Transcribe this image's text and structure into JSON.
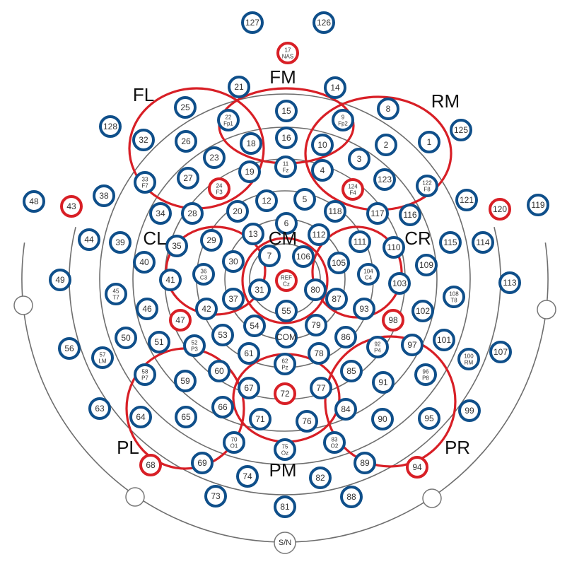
{
  "colors": {
    "electrode_ring": "#0f4f8a",
    "reference_ring": "#d81f26",
    "roi_outline": "#d81f26",
    "head_outline": "#6e6e6e"
  },
  "regions": [
    "FL",
    "FM",
    "RM",
    "CL",
    "CM",
    "CR",
    "PL",
    "PM",
    "PR"
  ],
  "reference_label": "S/N",
  "electrodes": [
    {
      "l1": "127",
      "c": "blue"
    },
    {
      "l1": "126",
      "c": "blue"
    },
    {
      "l1": "17",
      "l2": "NAS",
      "c": "red"
    },
    {
      "l1": "21",
      "c": "blue"
    },
    {
      "l1": "14",
      "c": "blue"
    },
    {
      "l1": "25",
      "c": "blue"
    },
    {
      "l1": "22",
      "l2": "Fp1",
      "c": "blue"
    },
    {
      "l1": "15",
      "c": "blue"
    },
    {
      "l1": "9",
      "l2": "Fp2",
      "c": "blue"
    },
    {
      "l1": "8",
      "c": "blue"
    },
    {
      "l1": "128",
      "c": "blue"
    },
    {
      "l1": "32",
      "c": "blue"
    },
    {
      "l1": "26",
      "c": "blue"
    },
    {
      "l1": "18",
      "c": "blue"
    },
    {
      "l1": "16",
      "c": "blue"
    },
    {
      "l1": "10",
      "c": "blue"
    },
    {
      "l1": "2",
      "c": "blue"
    },
    {
      "l1": "1",
      "c": "blue"
    },
    {
      "l1": "125",
      "c": "blue"
    },
    {
      "l1": "23",
      "c": "blue"
    },
    {
      "l1": "3",
      "c": "blue"
    },
    {
      "l1": "33",
      "l2": "F7",
      "c": "blue"
    },
    {
      "l1": "27",
      "c": "blue"
    },
    {
      "l1": "19",
      "c": "blue"
    },
    {
      "l1": "11",
      "l2": "Fz",
      "c": "blue"
    },
    {
      "l1": "4",
      "c": "blue"
    },
    {
      "l1": "123",
      "c": "blue"
    },
    {
      "l1": "122",
      "l2": "F8",
      "c": "blue"
    },
    {
      "l1": "24",
      "l2": "F3",
      "c": "red"
    },
    {
      "l1": "124",
      "l2": "F4",
      "c": "red"
    },
    {
      "l1": "48",
      "c": "blue"
    },
    {
      "l1": "43",
      "c": "red"
    },
    {
      "l1": "38",
      "c": "blue"
    },
    {
      "l1": "12",
      "c": "blue"
    },
    {
      "l1": "5",
      "c": "blue"
    },
    {
      "l1": "121",
      "c": "blue"
    },
    {
      "l1": "120",
      "c": "red"
    },
    {
      "l1": "119",
      "c": "blue"
    },
    {
      "l1": "34",
      "c": "blue"
    },
    {
      "l1": "28",
      "c": "blue"
    },
    {
      "l1": "20",
      "c": "blue"
    },
    {
      "l1": "118",
      "c": "blue"
    },
    {
      "l1": "117",
      "c": "blue"
    },
    {
      "l1": "116",
      "c": "blue"
    },
    {
      "l1": "6",
      "c": "blue"
    },
    {
      "l1": "44",
      "c": "blue"
    },
    {
      "l1": "39",
      "c": "blue"
    },
    {
      "l1": "35",
      "c": "blue"
    },
    {
      "l1": "29",
      "c": "blue"
    },
    {
      "l1": "13",
      "c": "blue"
    },
    {
      "l1": "112",
      "c": "blue"
    },
    {
      "l1": "111",
      "c": "blue"
    },
    {
      "l1": "110",
      "c": "blue"
    },
    {
      "l1": "115",
      "c": "blue"
    },
    {
      "l1": "114",
      "c": "blue"
    },
    {
      "l1": "7",
      "c": "blue"
    },
    {
      "l1": "106",
      "c": "blue"
    },
    {
      "l1": "40",
      "c": "blue"
    },
    {
      "l1": "36",
      "l2": "C3",
      "c": "blue"
    },
    {
      "l1": "30",
      "c": "blue"
    },
    {
      "l1": "105",
      "c": "blue"
    },
    {
      "l1": "104",
      "l2": "C4",
      "c": "blue"
    },
    {
      "l1": "109",
      "c": "blue"
    },
    {
      "l1": "49",
      "c": "blue"
    },
    {
      "l1": "41",
      "c": "blue"
    },
    {
      "l1": "REF",
      "l2": "Cz",
      "c": "red"
    },
    {
      "l1": "103",
      "c": "blue"
    },
    {
      "l1": "113",
      "c": "blue"
    },
    {
      "l1": "45",
      "l2": "T7",
      "c": "blue"
    },
    {
      "l1": "37",
      "c": "blue"
    },
    {
      "l1": "31",
      "c": "blue"
    },
    {
      "l1": "80",
      "c": "blue"
    },
    {
      "l1": "87",
      "c": "blue"
    },
    {
      "l1": "108",
      "l2": "T8",
      "c": "blue"
    },
    {
      "l1": "46",
      "c": "blue"
    },
    {
      "l1": "42",
      "c": "blue"
    },
    {
      "l1": "55",
      "c": "blue"
    },
    {
      "l1": "93",
      "c": "blue"
    },
    {
      "l1": "102",
      "c": "blue"
    },
    {
      "l1": "47",
      "c": "red"
    },
    {
      "l1": "54",
      "c": "blue"
    },
    {
      "l1": "79",
      "c": "blue"
    },
    {
      "l1": "98",
      "c": "red"
    },
    {
      "l1": "50",
      "c": "blue"
    },
    {
      "l1": "53",
      "c": "blue"
    },
    {
      "l1": "COM",
      "c": "blue"
    },
    {
      "l1": "86",
      "c": "blue"
    },
    {
      "l1": "101",
      "c": "blue"
    },
    {
      "l1": "51",
      "c": "blue"
    },
    {
      "l1": "52",
      "l2": "P3",
      "c": "blue"
    },
    {
      "l1": "92",
      "l2": "P4",
      "c": "blue"
    },
    {
      "l1": "97",
      "c": "blue"
    },
    {
      "l1": "56",
      "c": "blue"
    },
    {
      "l1": "57",
      "l2": "LM",
      "c": "blue"
    },
    {
      "l1": "61",
      "c": "blue"
    },
    {
      "l1": "78",
      "c": "blue"
    },
    {
      "l1": "100",
      "l2": "RM",
      "c": "blue"
    },
    {
      "l1": "107",
      "c": "blue"
    },
    {
      "l1": "62",
      "l2": "Pz",
      "c": "blue"
    },
    {
      "l1": "58",
      "l2": "P7",
      "c": "blue"
    },
    {
      "l1": "60",
      "c": "blue"
    },
    {
      "l1": "85",
      "c": "blue"
    },
    {
      "l1": "96",
      "l2": "P8",
      "c": "blue"
    },
    {
      "l1": "59",
      "c": "blue"
    },
    {
      "l1": "67",
      "c": "blue"
    },
    {
      "l1": "72",
      "c": "red"
    },
    {
      "l1": "77",
      "c": "blue"
    },
    {
      "l1": "91",
      "c": "blue"
    },
    {
      "l1": "63",
      "c": "blue"
    },
    {
      "l1": "66",
      "c": "blue"
    },
    {
      "l1": "84",
      "c": "blue"
    },
    {
      "l1": "99",
      "c": "blue"
    },
    {
      "l1": "64",
      "c": "blue"
    },
    {
      "l1": "65",
      "c": "blue"
    },
    {
      "l1": "71",
      "c": "blue"
    },
    {
      "l1": "76",
      "c": "blue"
    },
    {
      "l1": "90",
      "c": "blue"
    },
    {
      "l1": "95",
      "c": "blue"
    },
    {
      "l1": "70",
      "l2": "O1",
      "c": "blue"
    },
    {
      "l1": "83",
      "l2": "O2",
      "c": "blue"
    },
    {
      "l1": "75",
      "l2": "Oz",
      "c": "blue"
    },
    {
      "l1": "69",
      "c": "blue"
    },
    {
      "l1": "89",
      "c": "blue"
    },
    {
      "l1": "68",
      "c": "red"
    },
    {
      "l1": "94",
      "c": "red"
    },
    {
      "l1": "74",
      "c": "blue"
    },
    {
      "l1": "82",
      "c": "blue"
    },
    {
      "l1": "73",
      "c": "blue"
    },
    {
      "l1": "88",
      "c": "blue"
    },
    {
      "l1": "81",
      "c": "blue"
    }
  ]
}
